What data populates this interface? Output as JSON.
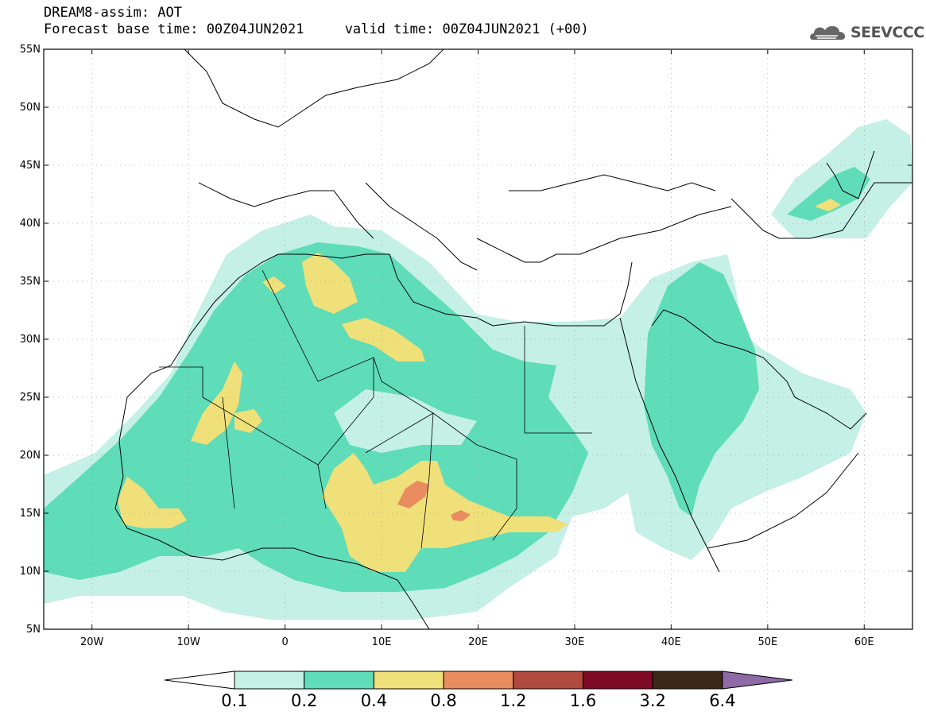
{
  "header": {
    "title": "DREAM8-assim: AOT",
    "forecast_line": "Forecast base time: 00Z04JUN2021     valid time: 00Z04JUN2021 (+00)",
    "logo_text": "SEEVCCC"
  },
  "map": {
    "lon_range": [
      -25,
      65
    ],
    "lat_range": [
      5,
      55
    ],
    "lat_ticks": [
      "55N",
      "50N",
      "45N",
      "40N",
      "35N",
      "30N",
      "25N",
      "20N",
      "15N",
      "10N",
      "5N"
    ],
    "lon_ticks": [
      "20W",
      "10W",
      "0",
      "10E",
      "20E",
      "30E",
      "40E",
      "50E",
      "60E"
    ],
    "field": "Aerosol optical thickness (AOT)",
    "colors": {
      "land_bg": "#ffffff",
      "coast": "#000000"
    }
  },
  "colorbar": {
    "levels": [
      "0.1",
      "0.2",
      "0.4",
      "0.8",
      "1.2",
      "1.6",
      "3.2",
      "6.4"
    ],
    "colors": [
      "#c4f0e6",
      "#5fdcb8",
      "#f0e07a",
      "#e98c5f",
      "#b04a3f",
      "#7e0a26",
      "#3d2817",
      "#8e6aa6"
    ],
    "left_arrow_color": "#ffffff"
  }
}
